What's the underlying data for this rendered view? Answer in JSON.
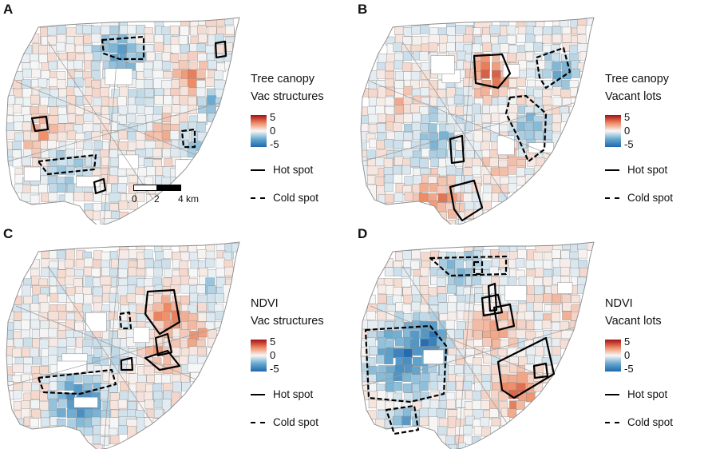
{
  "panels": [
    {
      "letter": "A",
      "title1": "Tree canopy",
      "title2": "Vac structures"
    },
    {
      "letter": "B",
      "title1": "Tree canopy",
      "title2": "Vacant lots"
    },
    {
      "letter": "C",
      "title1": "NDVI",
      "title2": "Vac structures"
    },
    {
      "letter": "D",
      "title1": "NDVI",
      "title2": "Vacant lots"
    }
  ],
  "legend": {
    "max": "5",
    "mid": "0",
    "min": "-5",
    "hot_label": "Hot spot",
    "cold_label": "Cold spot"
  },
  "scale_bar": {
    "labels": [
      "0",
      "2",
      "4 km"
    ]
  },
  "colors": {
    "high": "#a50f15",
    "mid": "#f7f7f7",
    "low": "#2166ac",
    "outline": "#000000",
    "tract_border": "#8c8c8c"
  }
}
